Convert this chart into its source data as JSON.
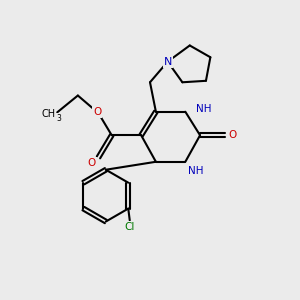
{
  "background_color": "#ebebeb",
  "black": "#000000",
  "blue": "#0000bb",
  "red": "#cc0000",
  "green": "#007700",
  "lw": 1.5,
  "xlim": [
    0,
    10
  ],
  "ylim": [
    0,
    10
  ]
}
